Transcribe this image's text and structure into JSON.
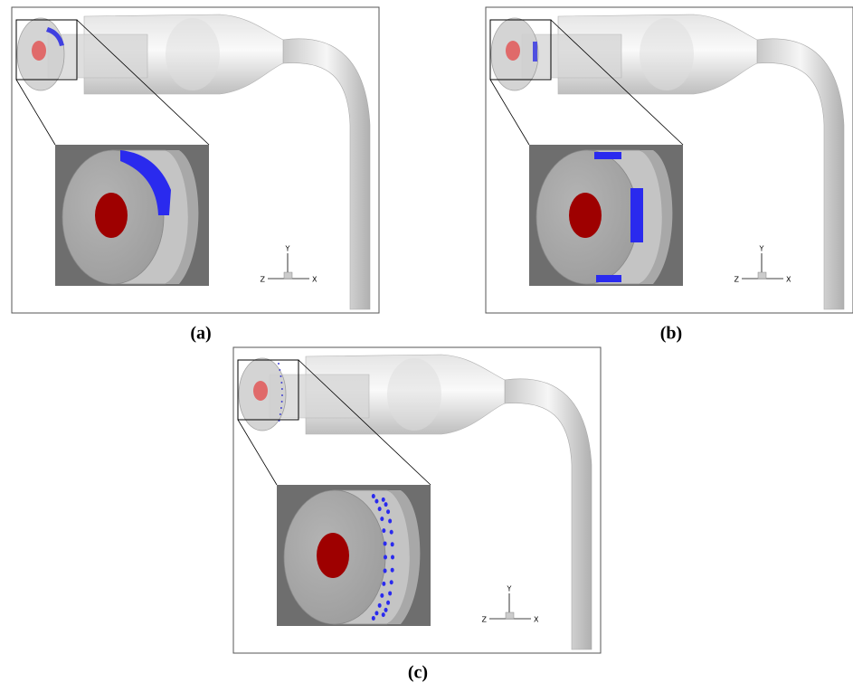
{
  "panels": [
    {
      "label": "(a)",
      "axes": {
        "y": "Y",
        "z": "Z",
        "x": "X"
      }
    },
    {
      "label": "(b)",
      "axes": {
        "y": "Y",
        "z": "Z",
        "x": "X"
      }
    },
    {
      "label": "(c)",
      "axes": {
        "y": "Y",
        "z": "Z",
        "x": "X"
      }
    }
  ]
}
